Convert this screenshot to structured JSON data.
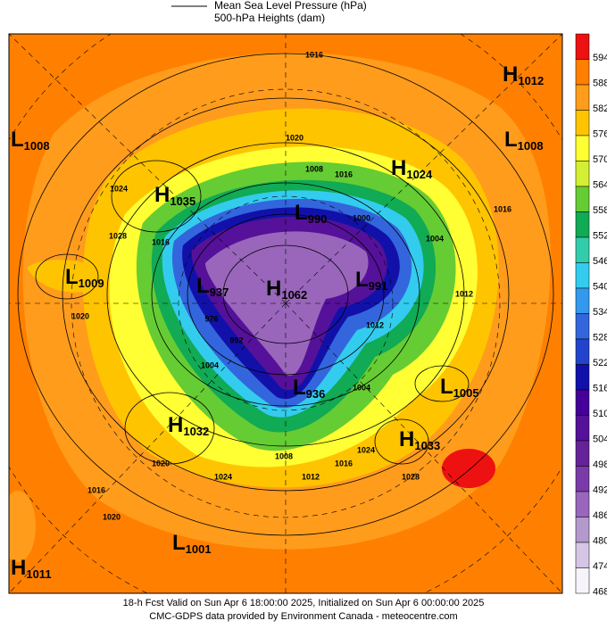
{
  "legend": {
    "line_sample": "Mean Sea Level Pressure (hPa)",
    "fill": "500-hPa Heights (dam)"
  },
  "colorbar": {
    "levels": [
      594,
      588,
      582,
      576,
      570,
      564,
      558,
      552,
      546,
      540,
      534,
      528,
      522,
      516,
      510,
      504,
      498,
      492,
      486,
      480,
      474,
      468
    ],
    "colors": [
      "#ee1111",
      "#ff7f00",
      "#ff9c1c",
      "#ffc400",
      "#ffff33",
      "#d4ee33",
      "#66cc33",
      "#11aa55",
      "#33ccaa",
      "#33ccee",
      "#3399ee",
      "#3366dd",
      "#2244cc",
      "#1111aa",
      "#440099",
      "#551199",
      "#662299",
      "#7a3aa8",
      "#9966bb",
      "#b399cc",
      "#d4c6e4",
      "#f6f4fa"
    ]
  },
  "centers": [
    {
      "kind": "H",
      "value": "1012"
    },
    {
      "kind": "L",
      "value": "1008"
    },
    {
      "kind": "L",
      "value": "1008"
    },
    {
      "kind": "H",
      "value": "1024"
    },
    {
      "kind": "H",
      "value": "1035"
    },
    {
      "kind": "L",
      "value": "990"
    },
    {
      "kind": "L",
      "value": "1009"
    },
    {
      "kind": "L",
      "value": "937"
    },
    {
      "kind": "H",
      "value": "1062"
    },
    {
      "kind": "L",
      "value": "991"
    },
    {
      "kind": "L",
      "value": "1005"
    },
    {
      "kind": "L",
      "value": "936"
    },
    {
      "kind": "H",
      "value": "1032"
    },
    {
      "kind": "H",
      "value": "1033"
    },
    {
      "kind": "L",
      "value": "1001"
    },
    {
      "kind": "H",
      "value": "1011"
    }
  ],
  "contour_labels": [
    "1016",
    "1020",
    "1008",
    "1016",
    "1024",
    "1000",
    "1004",
    "1016",
    "1016",
    "1028",
    "1012",
    "1020",
    "1004",
    "976",
    "992",
    "1012",
    "1016",
    "1012",
    "1024",
    "1028",
    "1020",
    "1016",
    "1020",
    "1024",
    "1004",
    "1008"
  ],
  "footer": {
    "line1": "18-h Fcst Valid on Sun Apr  6 18:00:00 2025, Initialized on Sun Apr  6 00:00:00 2025",
    "line2": "CMC-GDPS data provided by Environment Canada - meteocentre.com"
  }
}
